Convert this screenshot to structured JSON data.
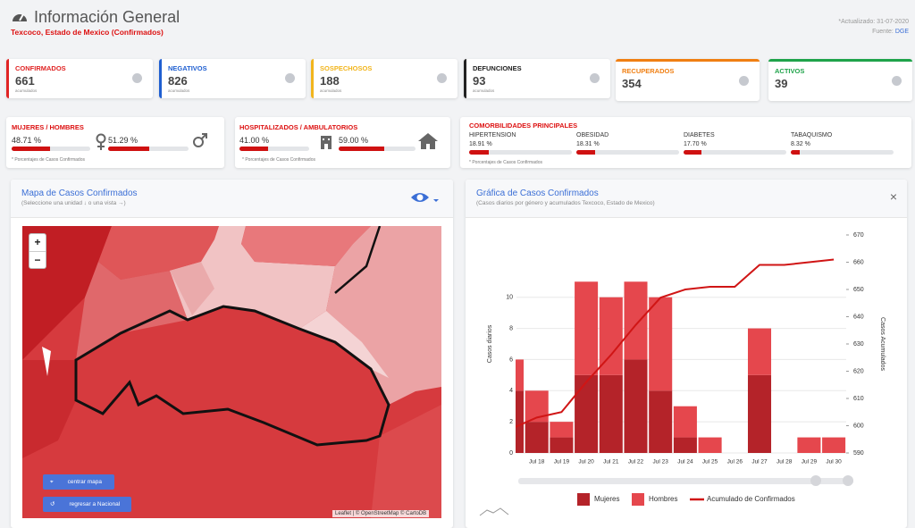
{
  "header": {
    "title": "Información General",
    "subtitle": "Texcoco, Estado de Mexico (Confirmados)",
    "updated": "*Actualizado: 31-07-2020",
    "source_label": "Fuente:",
    "source": "DGE"
  },
  "cards": [
    {
      "label": "CONFIRMADOS",
      "value": 661,
      "note": "acumulados",
      "color": "#e02424"
    },
    {
      "label": "NEGATIVOS",
      "value": 826,
      "note": "acumulados",
      "color": "#1f5fd1"
    },
    {
      "label": "SOSPECHOSOS",
      "value": 188,
      "note": "acumulados",
      "color": "#f2b51d"
    },
    {
      "label": "DEFUNCIONES",
      "value": 93,
      "note": "acumulados",
      "color": "#222222"
    },
    {
      "label": "RECUPERADOS",
      "value": 354,
      "color": "#f07f12"
    },
    {
      "label": "ACTIVOS",
      "value": 39,
      "color": "#1fa34a"
    }
  ],
  "gender": {
    "title": "MUJERES / HOMBRES",
    "items": [
      {
        "value": 48.71,
        "label": "48.71 %"
      },
      {
        "value": 51.29,
        "label": "51.29 %"
      }
    ],
    "note": "* Porcentajes de Casos Confirmados"
  },
  "hospital": {
    "title": "HOSPITALIZADOS / AMBULATORIOS",
    "items": [
      {
        "value": 41.0,
        "label": "41.00 %"
      },
      {
        "value": 59.0,
        "label": "59.00 %"
      }
    ],
    "note": "* Porcentajes de Casos Confirmados"
  },
  "comorbidities": {
    "title": "COMORBILIDADES PRINCIPALES",
    "items": [
      {
        "name": "HIPERTENSION",
        "value": 18.91,
        "label": "18.91 %"
      },
      {
        "name": "OBESIDAD",
        "value": 18.31,
        "label": "18.31 %"
      },
      {
        "name": "DIABETES",
        "value": 17.7,
        "label": "17.70 %"
      },
      {
        "name": "TABAQUISMO",
        "value": 8.32,
        "label": "8.32 %"
      }
    ],
    "note": "* Porcentajes de Casos Confirmados"
  },
  "map_panel": {
    "title": "Mapa de Casos Confirmados",
    "subtitle": "(Seleccione una unidad ↓ o una vista →)",
    "zoom_in": "+",
    "zoom_out": "−",
    "buttons": [
      "centrar mapa",
      "regresar a Nacional"
    ],
    "attribution": "Leaflet | © OpenStreetMap © CartoDB"
  },
  "chart_data": {
    "type": "bar",
    "title": "Gráfica de Casos Confirmados",
    "subtitle": "(Casos diarios por género y acumulados Texcoco, Estado de Mexico)",
    "close": "×",
    "ylabel": "Casos diarios",
    "y2label": "Casos Acumulados",
    "stacked": true,
    "grid": true,
    "categories": [
      null,
      "Jul 18",
      "Jul 19",
      "Jul 20",
      "Jul 21",
      "Jul 22",
      "Jul 23",
      "Jul 24",
      "Jul 25",
      "Jul 26",
      "Jul 27",
      "Jul 28",
      "Jul 29",
      "Jul 30"
    ],
    "series": [
      {
        "name": "Mujeres",
        "color": "#b42329",
        "values": [
          4,
          2,
          1,
          5,
          5,
          6,
          4,
          1,
          0,
          0,
          5,
          0,
          0,
          0
        ]
      },
      {
        "name": "Hombres",
        "color": "#e5474d",
        "values": [
          2,
          2,
          1,
          6,
          5,
          5,
          6,
          2,
          1,
          0,
          3,
          0,
          1,
          1
        ]
      },
      {
        "name": "Acumulado de Confirmados",
        "type": "line",
        "axis": "y2",
        "color": "#d01515",
        "values": [
          599,
          603,
          605,
          616,
          626,
          637,
          647,
          650,
          651,
          651,
          659,
          659,
          660,
          661
        ]
      }
    ],
    "ylim": [
      0,
      14
    ],
    "yticks": [
      0,
      2,
      4,
      6,
      8,
      10
    ],
    "y2lim": [
      590,
      670
    ],
    "y2ticks": [
      590,
      600,
      610,
      620,
      630,
      640,
      650,
      660,
      670
    ]
  }
}
